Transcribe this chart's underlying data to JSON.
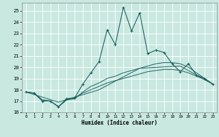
{
  "title": "",
  "xlabel": "Humidex (Indice chaleur)",
  "ylabel": "",
  "bg_color": "#c8e8e0",
  "grid_color": "#ffffff",
  "line_color": "#1a6060",
  "xlim": [
    -0.5,
    23.5
  ],
  "ylim": [
    16.0,
    25.7
  ],
  "xticks": [
    0,
    1,
    2,
    3,
    4,
    5,
    6,
    7,
    8,
    9,
    10,
    11,
    12,
    13,
    14,
    15,
    16,
    17,
    18,
    19,
    20,
    21,
    22,
    23
  ],
  "yticks": [
    16,
    17,
    18,
    19,
    20,
    21,
    22,
    23,
    24,
    25
  ],
  "line1_x": [
    0,
    1,
    2,
    3,
    4,
    5,
    6,
    7,
    8,
    9,
    10,
    11,
    12,
    13,
    14,
    15,
    16,
    17,
    18,
    19,
    20,
    21,
    22,
    23
  ],
  "line1_y": [
    17.8,
    17.7,
    17.0,
    17.0,
    16.5,
    17.2,
    17.3,
    18.5,
    19.5,
    20.5,
    23.3,
    22.0,
    25.3,
    23.2,
    24.8,
    21.2,
    21.5,
    21.3,
    20.3,
    19.6,
    20.3,
    19.3,
    19.0,
    18.5
  ],
  "line2_x": [
    0,
    1,
    2,
    3,
    4,
    5,
    6,
    7,
    8,
    9,
    10,
    11,
    12,
    13,
    14,
    15,
    16,
    17,
    18,
    19,
    20,
    21,
    22,
    23
  ],
  "line2_y": [
    17.8,
    17.7,
    17.1,
    17.0,
    16.5,
    17.1,
    17.2,
    17.8,
    18.3,
    18.6,
    19.0,
    19.2,
    19.5,
    19.7,
    19.9,
    20.1,
    20.3,
    20.4,
    20.4,
    20.3,
    20.0,
    19.5,
    19.0,
    18.5
  ],
  "line3_x": [
    0,
    1,
    2,
    3,
    4,
    5,
    6,
    7,
    8,
    9,
    10,
    11,
    12,
    13,
    14,
    15,
    16,
    17,
    18,
    19,
    20,
    21,
    22,
    23
  ],
  "line3_y": [
    17.8,
    17.7,
    17.1,
    17.0,
    16.5,
    17.1,
    17.3,
    17.7,
    18.0,
    18.3,
    18.6,
    18.8,
    19.0,
    19.2,
    19.4,
    19.6,
    19.7,
    19.8,
    19.8,
    19.7,
    19.5,
    19.2,
    18.9,
    18.5
  ],
  "line4_x": [
    0,
    4,
    9,
    14,
    19,
    23
  ],
  "line4_y": [
    17.8,
    16.9,
    18.0,
    19.9,
    20.1,
    18.5
  ]
}
